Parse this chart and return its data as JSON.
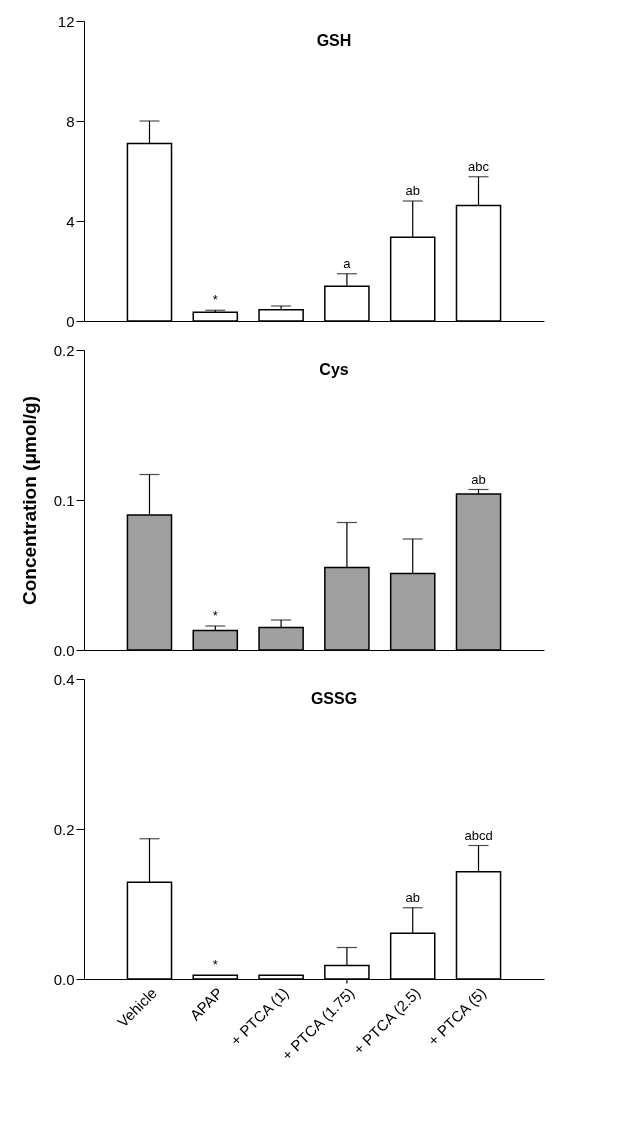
{
  "chart_data": [
    {
      "type": "bar",
      "title": "GSH",
      "categories": [
        "Vehicle",
        "APAP",
        "+ PTCA (1)",
        "+ PTCA (1.75)",
        "+ PTCA (2.5)",
        "+ PTCA (5)"
      ],
      "series": [
        {
          "color": "#ffffff",
          "values": [
            7.1,
            0.35,
            0.45,
            1.39,
            3.35,
            4.62
          ],
          "errors": [
            0.9,
            0.08,
            0.15,
            0.5,
            1.45,
            1.15
          ]
        }
      ],
      "ylim": [
        0,
        12
      ],
      "yticks": [
        0,
        4,
        8,
        12
      ],
      "tick_labels": "y",
      "annotations": [
        {
          "text": "*",
          "x": "APAP",
          "y": 0.43
        },
        {
          "text": "a",
          "x": "+ PTCA (1.75)",
          "y": 1.89
        },
        {
          "text": "ab",
          "x": "+ PTCA (2.5)",
          "y": 4.8
        },
        {
          "text": "abc",
          "x": "+ PTCA (5)",
          "y": 5.77
        }
      ]
    },
    {
      "type": "bar",
      "title": "Cys",
      "ylabel": "Concentration (μmol/g)",
      "categories": [
        "Vehicle",
        "APAP",
        "+ PTCA (1)",
        "+ PTCA (1.75)",
        "+ PTCA (2.5)",
        "+ PTCA (5)"
      ],
      "series": [
        {
          "color": "#a0a0a0",
          "values": [
            0.09,
            0.013,
            0.015,
            0.055,
            0.051,
            0.104
          ],
          "errors": [
            0.027,
            0.003,
            0.005,
            0.03,
            0.023,
            0.003
          ]
        }
      ],
      "ylim": [
        0,
        0.2
      ],
      "yticks": [
        {
          "value": 0,
          "label": "0.0"
        },
        0.1,
        0.2
      ],
      "tick_labels": "y",
      "annotations": [
        {
          "text": "*",
          "x": "APAP",
          "y": 0.016
        },
        {
          "text": "ab",
          "x": "+ PTCA (5)",
          "y": 0.107
        }
      ]
    },
    {
      "type": "bar",
      "title": "GSSG",
      "categories": [
        "Vehicle",
        "APAP",
        "+ PTCA (1)",
        "+ PTCA (1.75)",
        "+ PTCA (2.5)",
        "+ PTCA (5)"
      ],
      "series": [
        {
          "color": "#ffffff",
          "values": [
            0.129,
            0.005,
            0.005,
            0.018,
            0.061,
            0.143
          ],
          "errors": [
            0.058,
            null,
            null,
            0.024,
            0.034,
            0.035
          ]
        }
      ],
      "ylim": [
        0,
        0.4
      ],
      "yticks": [
        {
          "value": 0,
          "label": "0.0"
        },
        0.2,
        0.4
      ],
      "annotations": [
        {
          "text": "*",
          "x": "APAP",
          "y": 0.005
        },
        {
          "text": "ab",
          "x": "+ PTCA (2.5)",
          "y": 0.095
        },
        {
          "text": "abcd",
          "x": "+ PTCA (5)",
          "y": 0.178
        }
      ]
    }
  ]
}
